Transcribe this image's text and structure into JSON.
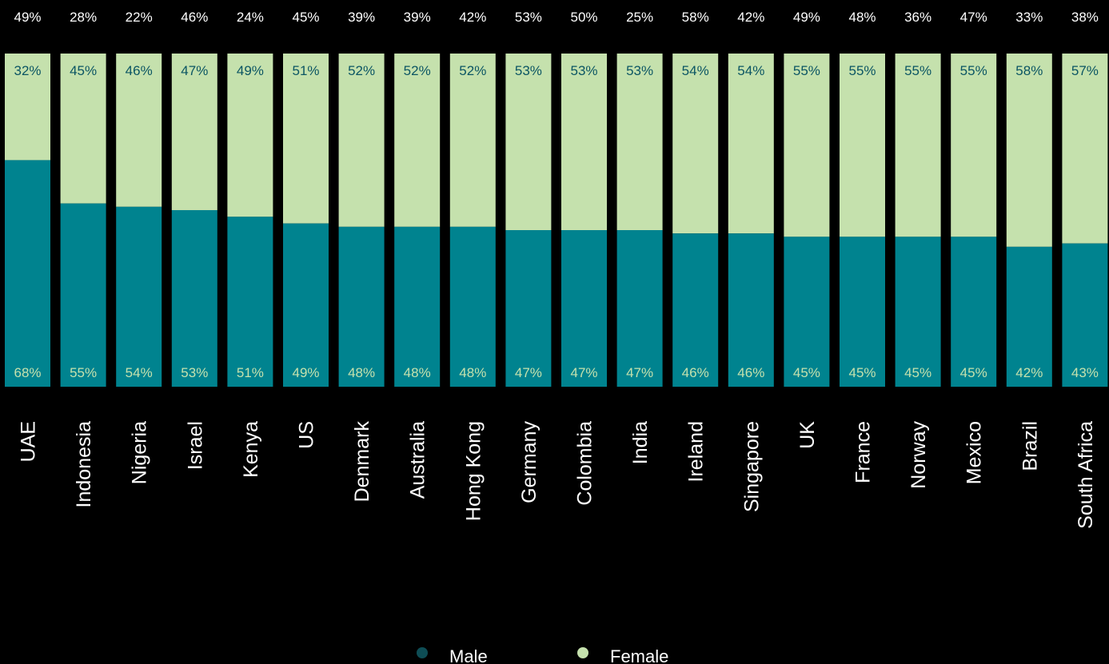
{
  "chart_data": {
    "type": "bar",
    "stacked": true,
    "categories": [
      "UAE",
      "Indonesia",
      "Nigeria",
      "Israel",
      "Kenya",
      "US",
      "Denmark",
      "Australia",
      "Hong Kong",
      "Germany",
      "Colombia",
      "India",
      "Ireland",
      "Singapore",
      "UK",
      "France",
      "Norway",
      "Mexico",
      "Brazil",
      "South Africa"
    ],
    "top_labels": [
      "49%",
      "28%",
      "22%",
      "46%",
      "24%",
      "45%",
      "39%",
      "39%",
      "42%",
      "53%",
      "50%",
      "25%",
      "58%",
      "42%",
      "49%",
      "48%",
      "36%",
      "47%",
      "33%",
      "38%"
    ],
    "series": [
      {
        "name": "Male",
        "color": "#00838f",
        "values": [
          68,
          55,
          54,
          53,
          51,
          49,
          48,
          48,
          48,
          47,
          47,
          47,
          46,
          46,
          45,
          45,
          45,
          45,
          42,
          43
        ],
        "labels": [
          "68%",
          "55%",
          "54%",
          "53%",
          "51%",
          "49%",
          "48%",
          "48%",
          "48%",
          "47%",
          "47%",
          "47%",
          "46%",
          "46%",
          "45%",
          "45%",
          "45%",
          "45%",
          "42%",
          "43%"
        ]
      },
      {
        "name": "Female",
        "color": "#c5e1ad",
        "values": [
          32,
          45,
          46,
          47,
          49,
          51,
          52,
          52,
          52,
          53,
          53,
          53,
          54,
          54,
          55,
          55,
          55,
          55,
          58,
          57
        ],
        "labels": [
          "32%",
          "45%",
          "46%",
          "47%",
          "49%",
          "51%",
          "52%",
          "52%",
          "52%",
          "53%",
          "53%",
          "53%",
          "54%",
          "54%",
          "55%",
          "55%",
          "55%",
          "55%",
          "58%",
          "57%"
        ]
      }
    ],
    "ylim": [
      0,
      100
    ],
    "grid": false,
    "legend": "bottom-center",
    "title": "",
    "xlabel": "",
    "ylabel": ""
  },
  "colors": {
    "background": "#000000",
    "male_label": "#c5e1ad",
    "female_label": "#0b5563",
    "top_label": "#ffffff",
    "legend_male_dot": "#0e4d55",
    "legend_female_dot": "#c5e1ad"
  },
  "legend": {
    "male_label": "Male",
    "female_label": "Female"
  }
}
